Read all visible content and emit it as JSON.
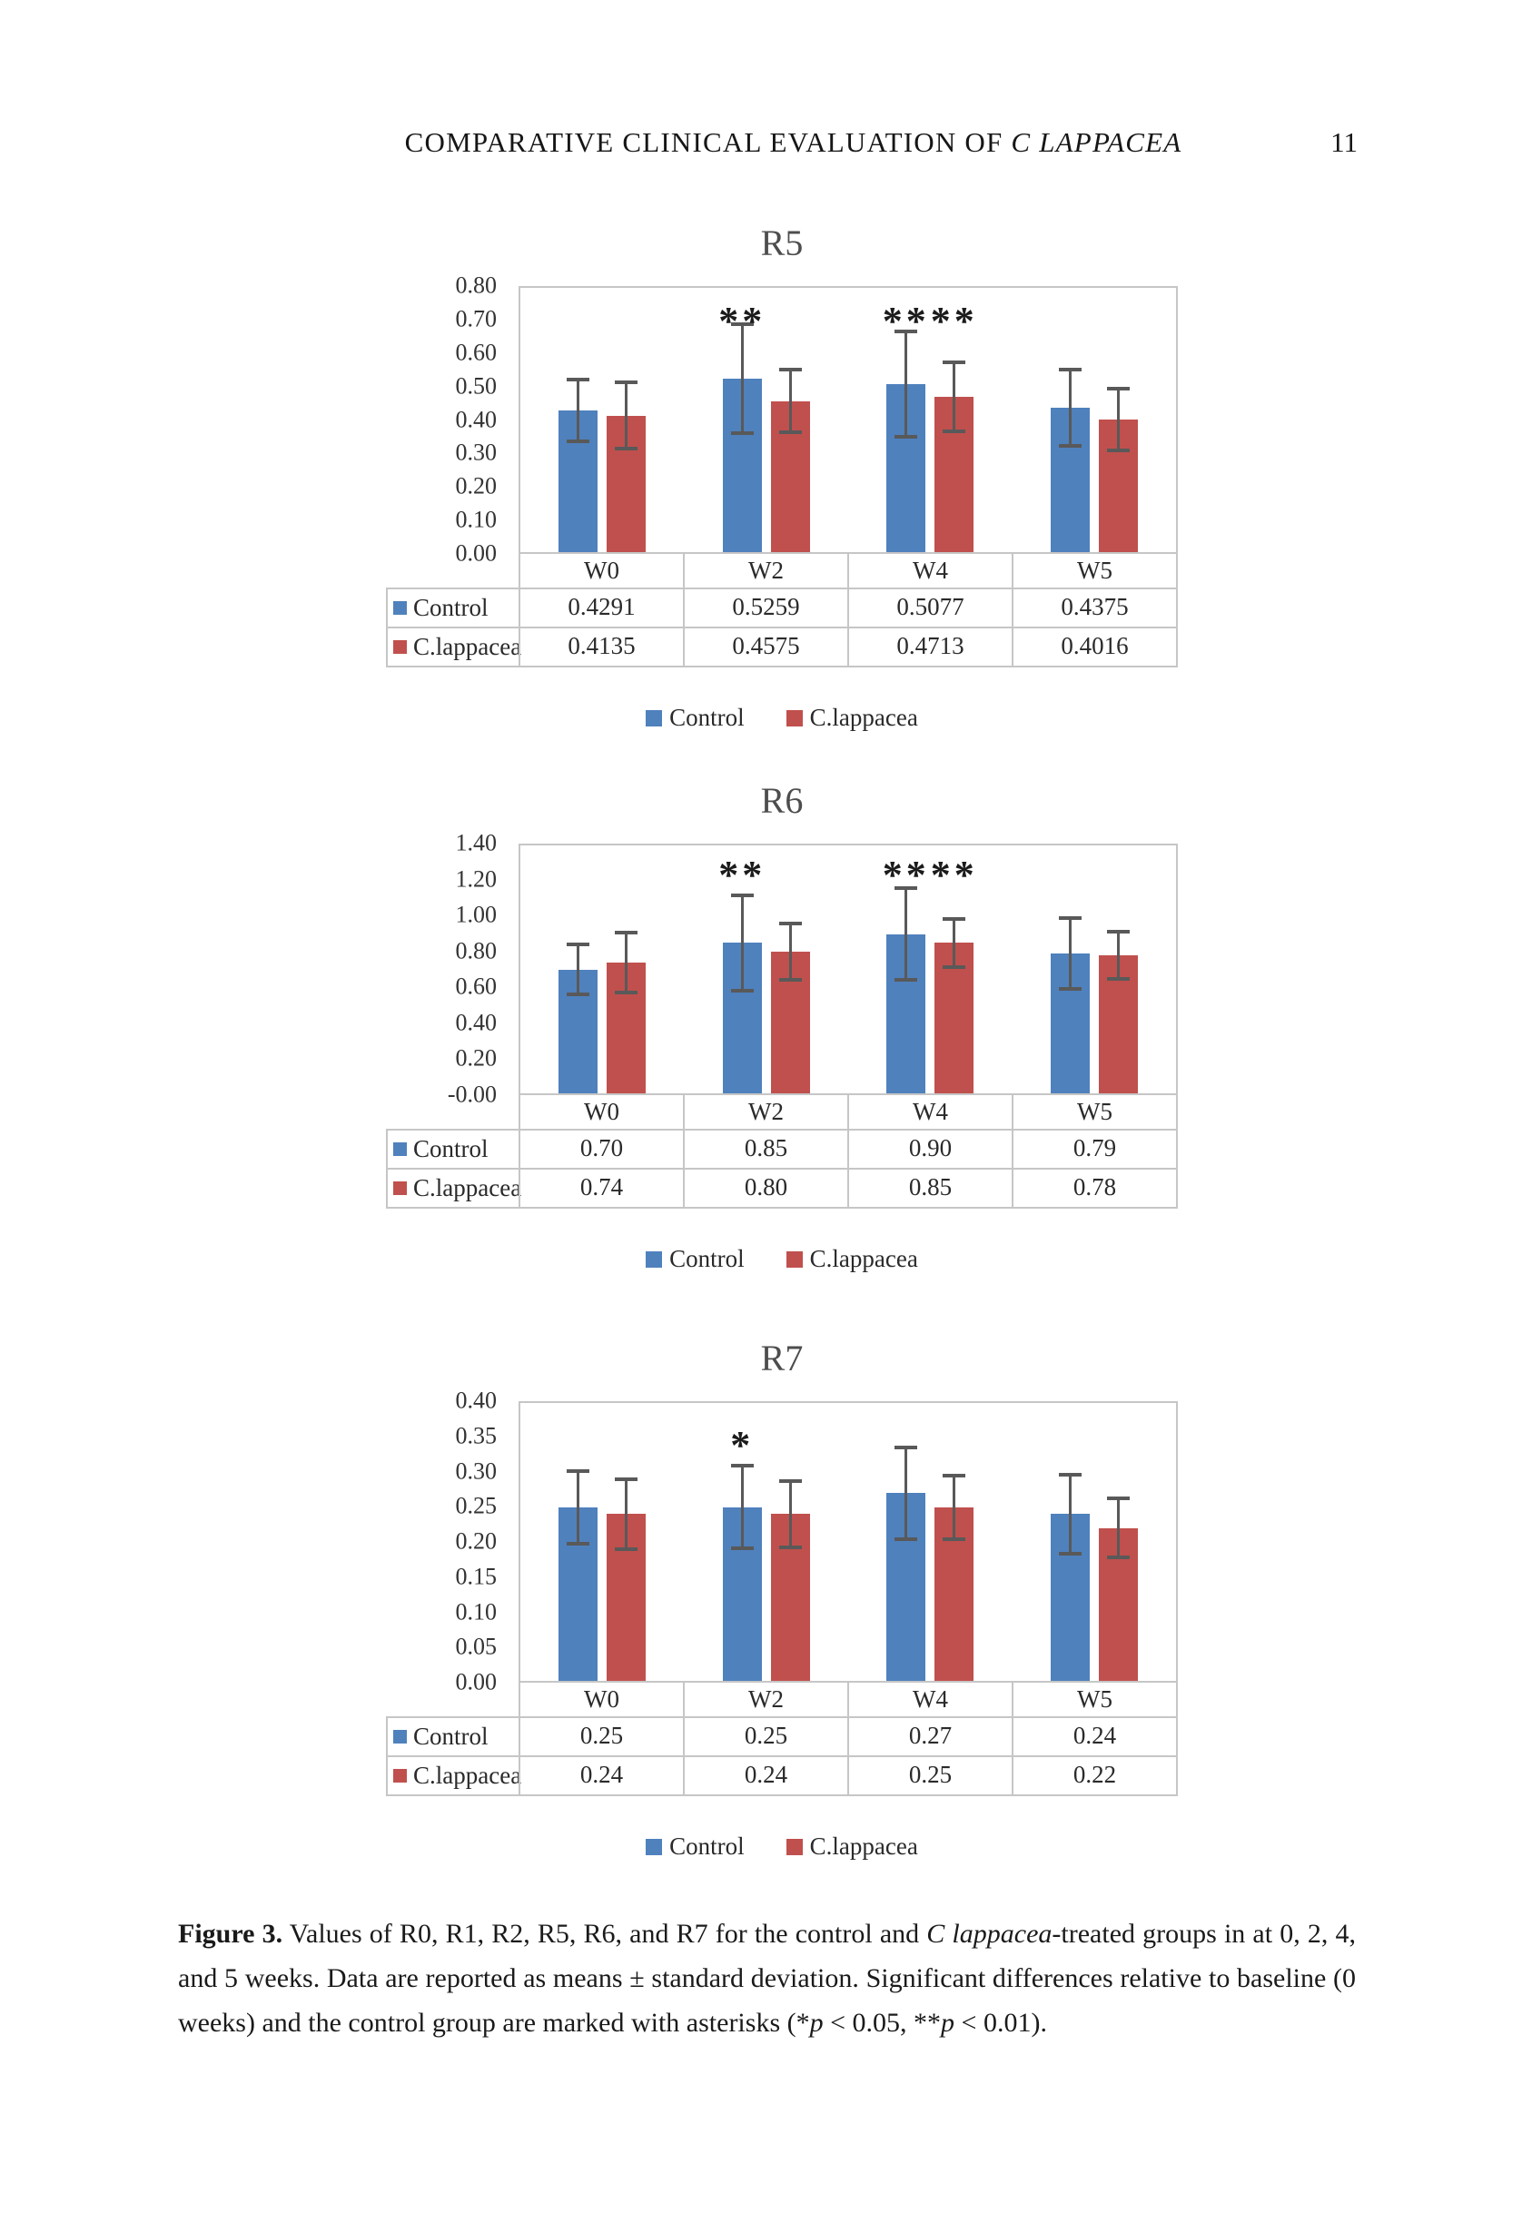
{
  "page_header": {
    "title": "COMPARATIVE CLINICAL EVALUATION OF",
    "title_italic": "C LAPPACEA",
    "page_number": "11"
  },
  "colors": {
    "control": "#4f81bd",
    "lappacea": "#c0504d",
    "error_bar": "#595959",
    "border": "#c6c6c6"
  },
  "legend": {
    "items": [
      {
        "label": "Control",
        "color": "#4f81bd"
      },
      {
        "label": "C.lappacea",
        "color": "#c0504d"
      }
    ]
  },
  "chart_data": [
    {
      "type": "bar",
      "title": "R5",
      "categories": [
        "W0",
        "W2",
        "W4",
        "W5"
      ],
      "ylim": [
        0,
        0.8
      ],
      "ytick_step": 0.1,
      "y_decimals": 2,
      "grid": false,
      "legend_position": "bottom",
      "sig_y_frac": 0.05,
      "series": [
        {
          "name": "Control",
          "color": "#4f81bd",
          "values": [
            0.4291,
            0.5259,
            0.5077,
            0.4375
          ],
          "sd": [
            0.1,
            0.17,
            0.165,
            0.12
          ],
          "table_labels": [
            "0.4291",
            "0.5259",
            "0.5077",
            "0.4375"
          ]
        },
        {
          "name": "C.lappacea",
          "color": "#c0504d",
          "values": [
            0.4135,
            0.4575,
            0.4713,
            0.4016
          ],
          "sd": [
            0.105,
            0.1,
            0.11,
            0.1
          ],
          "table_labels": [
            "0.4135",
            "0.4575",
            "0.4713",
            "0.4016"
          ]
        }
      ],
      "significance": [
        {
          "category": "W2",
          "series": "Control",
          "mark": "**"
        },
        {
          "category": "W4",
          "series": "Control",
          "mark": "**"
        },
        {
          "category": "W4",
          "series": "C.lappacea",
          "mark": "**"
        }
      ]
    },
    {
      "type": "bar",
      "title": "R6",
      "categories": [
        "W0",
        "W2",
        "W4",
        "W5"
      ],
      "ylim": [
        0,
        1.4
      ],
      "ytick_step": 0.2,
      "y_decimals": 2,
      "grid": false,
      "legend_position": "bottom",
      "sig_y_frac": 0.04,
      "series": [
        {
          "name": "Control",
          "color": "#4f81bd",
          "values": [
            0.7,
            0.85,
            0.9,
            0.79
          ],
          "sd": [
            0.15,
            0.28,
            0.27,
            0.21
          ],
          "table_labels": [
            "0.70",
            "0.85",
            "0.90",
            "0.79"
          ]
        },
        {
          "name": "C.lappacea",
          "color": "#c0504d",
          "values": [
            0.74,
            0.8,
            0.85,
            0.78
          ],
          "sd": [
            0.18,
            0.17,
            0.145,
            0.145
          ],
          "table_labels": [
            "0.74",
            "0.80",
            "0.85",
            "0.78"
          ]
        }
      ],
      "significance": [
        {
          "category": "W2",
          "series": "Control",
          "mark": "**"
        },
        {
          "category": "W4",
          "series": "Control",
          "mark": "**"
        },
        {
          "category": "W4",
          "series": "C.lappacea",
          "mark": "**"
        }
      ]
    },
    {
      "type": "bar",
      "title": "R7",
      "categories": [
        "W0",
        "W2",
        "W4",
        "W5"
      ],
      "ylim": [
        0,
        0.4
      ],
      "ytick_step": 0.05,
      "y_decimals": 2,
      "grid": false,
      "legend_position": "bottom",
      "sig_y_frac": 0.08,
      "series": [
        {
          "name": "Control",
          "color": "#4f81bd",
          "values": [
            0.25,
            0.25,
            0.27,
            0.24
          ],
          "sd": [
            0.055,
            0.062,
            0.068,
            0.06
          ],
          "table_labels": [
            "0.25",
            "0.25",
            "0.27",
            "0.24"
          ]
        },
        {
          "name": "C.lappacea",
          "color": "#c0504d",
          "values": [
            0.24,
            0.24,
            0.25,
            0.22
          ],
          "sd": [
            0.053,
            0.05,
            0.048,
            0.045
          ],
          "table_labels": [
            "0.24",
            "0.24",
            "0.25",
            "0.22"
          ]
        }
      ],
      "significance": [
        {
          "category": "W2",
          "series": "Control",
          "mark": "*"
        }
      ]
    }
  ],
  "figure_caption": {
    "label": "Figure 3.",
    "part1": "  Values of R0, R1, R2, R5, R6, and R7 for the control and ",
    "species_italic": "C lappacea",
    "part2": "-treated groups in at 0, 2, 4, and 5 weeks. Data are reported as means ± standard deviation. Significant differences relative to baseline (0 weeks) and the control group are marked with asterisks (*",
    "p1": "p",
    "part3": " < 0.05, **",
    "p2": "p",
    "part4": " < 0.01)."
  }
}
